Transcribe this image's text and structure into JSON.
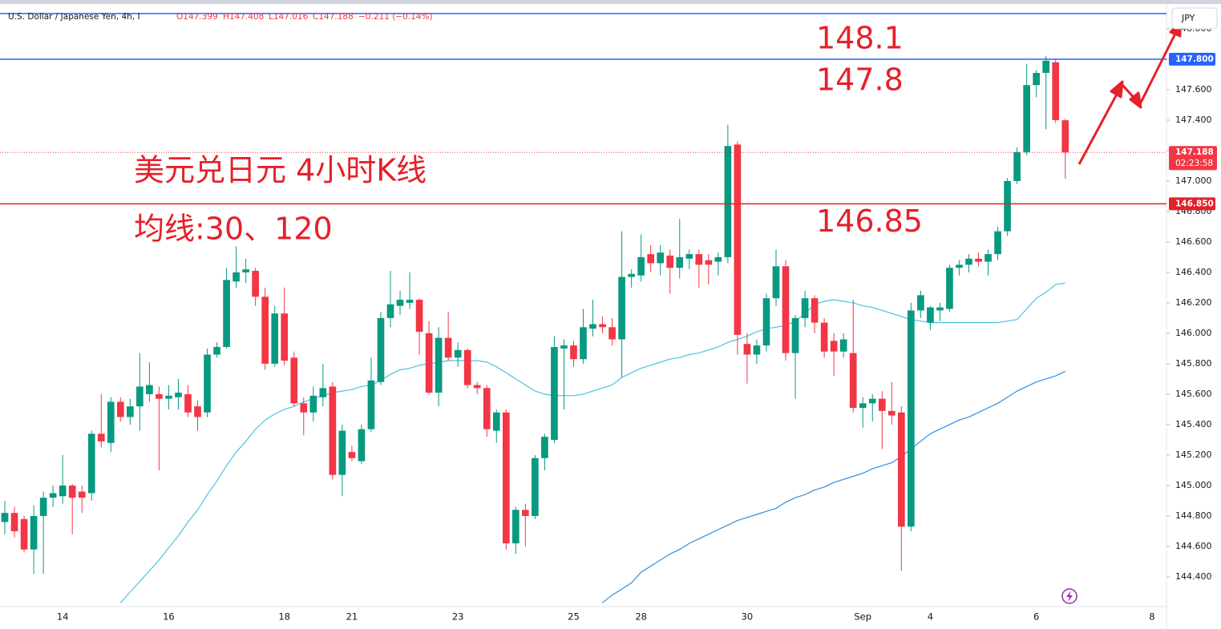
{
  "chart_data": {
    "type": "candlestick",
    "title": "U.S. Dollar / Japanese Yen, 4h, I",
    "header_values": [
      "O147.399",
      "H147.408",
      "L147.016",
      "C147.188",
      "−0.211 (−0.14%)"
    ],
    "currency_button": "JPY",
    "annotations": [
      "美元兑日元 4小时K线",
      "均线:30、120"
    ],
    "categories": [
      null,
      null,
      null,
      null,
      null,
      null,
      "14",
      null,
      null,
      null,
      null,
      null,
      null,
      null,
      null,
      null,
      null,
      "16",
      null,
      null,
      null,
      null,
      null,
      null,
      null,
      null,
      null,
      null,
      null,
      "18",
      null,
      null,
      null,
      null,
      null,
      null,
      "21",
      null,
      null,
      null,
      null,
      null,
      null,
      null,
      null,
      null,
      null,
      "23",
      null,
      null,
      null,
      null,
      null,
      null,
      null,
      null,
      null,
      null,
      null,
      "25",
      null,
      null,
      null,
      null,
      null,
      null,
      "28",
      null,
      null,
      null,
      null,
      null,
      null,
      null,
      null,
      null,
      null,
      "30",
      null,
      null,
      null,
      null,
      null,
      null,
      null,
      null,
      null,
      null,
      null,
      "Sep",
      null,
      null,
      null,
      null,
      null,
      null,
      "4",
      null,
      null,
      null,
      null,
      null,
      null,
      null,
      null,
      null,
      null,
      "6",
      null,
      null,
      null,
      null,
      null,
      null,
      null,
      null,
      null,
      null,
      null,
      "8",
      null
    ],
    "open": [
      144.76,
      144.82,
      144.78,
      144.58,
      144.8,
      144.92,
      144.93,
      145,
      144.96,
      144.95,
      145.34,
      145.28,
      145.55,
      145.45,
      145.52,
      145.6,
      145.6,
      145.57,
      145.58,
      145.6,
      145.52,
      145.48,
      145.86,
      145.91,
      146.34,
      146.4,
      146.41,
      146.24,
      145.8,
      146.13,
      145.84,
      145.54,
      145.48,
      145.58,
      145.65,
      145.07,
      145.22,
      145.16,
      145.37,
      145.68,
      146.1,
      146.18,
      146.2,
      146.22,
      146,
      145.61,
      145.97,
      145.84,
      145.89,
      145.66,
      145.64,
      145.36,
      145.48,
      144.62,
      144.84,
      144.8,
      145.18,
      145.3,
      145.9,
      145.92,
      145.83,
      146.03,
      146.06,
      146.04,
      145.96,
      146.37,
      146.38,
      146.52,
      146.46,
      146.51,
      146.43,
      146.49,
      146.52,
      146.48,
      146.47,
      146.5,
      147.24,
      145.93,
      145.86,
      145.92,
      146.23,
      146.44,
      145.87,
      146.1,
      146.23,
      146.07,
      145.95,
      145.88,
      145.87,
      145.51,
      145.54,
      145.57,
      145.49,
      145.48,
      144.73,
      146.15,
      146.07,
      146.15,
      146.16,
      146.43,
      146.45,
      146.49,
      146.47,
      146.52,
      146.67,
      147,
      147.19,
      147.63,
      147.71,
      147.78,
      147.399,
      null,
      null,
      null,
      null,
      null,
      null,
      null,
      null,
      null,
      null
    ],
    "high": [
      144.9,
      144.86,
      144.8,
      144.87,
      144.96,
      145,
      145.2,
      145.01,
      145,
      145.36,
      145.6,
      145.58,
      145.58,
      145.57,
      145.87,
      145.81,
      145.65,
      145.66,
      145.7,
      145.66,
      145.56,
      145.9,
      145.94,
      146.43,
      146.57,
      146.49,
      146.43,
      146.3,
      146.18,
      146.3,
      145.88,
      145.58,
      145.65,
      145.8,
      145.68,
      145.4,
      145.26,
      145.4,
      145.84,
      146.14,
      146.41,
      146.28,
      146.4,
      146.23,
      146.08,
      146.04,
      146.14,
      145.94,
      145.9,
      145.68,
      145.66,
      145.5,
      145.5,
      144.86,
      144.88,
      145.2,
      145.34,
      145.98,
      145.96,
      145.95,
      146.16,
      146.22,
      146.11,
      146.1,
      146.67,
      146.42,
      146.65,
      146.58,
      146.58,
      146.55,
      146.75,
      146.55,
      146.55,
      146.52,
      146.53,
      147.37,
      147.26,
      146,
      145.96,
      146.26,
      146.55,
      146.48,
      146.12,
      146.28,
      146.25,
      146.1,
      146,
      146,
      146.22,
      145.58,
      145.6,
      145.62,
      145.68,
      145.52,
      146.2,
      146.28,
      146.18,
      146.2,
      146.45,
      146.48,
      146.52,
      146.53,
      146.55,
      146.7,
      147.02,
      147.22,
      147.77,
      147.73,
      147.82,
      147.8,
      147.408,
      null,
      null,
      null,
      null,
      null,
      null,
      null,
      null,
      null,
      null
    ],
    "low": [
      144.68,
      144.66,
      144.56,
      144.42,
      144.42,
      144.86,
      144.88,
      144.68,
      144.82,
      144.9,
      145.25,
      145.22,
      145.42,
      145.4,
      145.36,
      145.55,
      145.1,
      145.5,
      145.5,
      145.45,
      145.36,
      145.45,
      145.84,
      145.9,
      146.3,
      146.33,
      146.18,
      145.76,
      145.78,
      145.79,
      145.52,
      145.33,
      145.42,
      145.52,
      145.04,
      144.93,
      145.16,
      145.14,
      145.35,
      145.66,
      146.04,
      146.12,
      146.16,
      145.86,
      145.6,
      145.52,
      145.82,
      145.78,
      145.64,
      145.6,
      145.32,
      145.28,
      144.58,
      144.55,
      144.6,
      144.78,
      145.1,
      145.28,
      145.5,
      145.78,
      145.8,
      145.98,
      146,
      145.92,
      145.71,
      146.3,
      146.34,
      146.4,
      146.38,
      146.26,
      146.36,
      146.42,
      146.3,
      146.32,
      146.38,
      146.46,
      145.86,
      145.67,
      145.8,
      145.88,
      146.18,
      145.82,
      145.57,
      146.04,
      146,
      145.84,
      145.72,
      145.84,
      145.48,
      145.38,
      145.42,
      145.24,
      145.4,
      144.44,
      144.7,
      146.1,
      146.02,
      146.08,
      146.14,
      146.38,
      146.4,
      146.44,
      146.38,
      146.48,
      146.64,
      146.98,
      147.17,
      147.55,
      147.34,
      147.38,
      147.016,
      null,
      null,
      null,
      null,
      null,
      null,
      null,
      null,
      null,
      null
    ],
    "close": [
      144.82,
      144.7,
      144.58,
      144.8,
      144.92,
      144.95,
      145,
      144.92,
      144.92,
      145.34,
      145.29,
      145.55,
      145.45,
      145.52,
      145.65,
      145.66,
      145.57,
      145.59,
      145.61,
      145.48,
      145.45,
      145.86,
      145.91,
      146.35,
      146.4,
      146.42,
      146.24,
      145.8,
      146.13,
      145.82,
      145.54,
      145.48,
      145.59,
      145.64,
      145.07,
      145.36,
      145.18,
      145.37,
      145.69,
      146.1,
      146.19,
      146.22,
      146.22,
      146.01,
      145.61,
      145.97,
      145.84,
      145.89,
      145.66,
      145.64,
      145.37,
      145.48,
      144.62,
      144.84,
      144.8,
      145.18,
      145.32,
      145.91,
      145.92,
      145.83,
      146.04,
      146.06,
      146.04,
      145.96,
      146.37,
      146.39,
      146.5,
      146.46,
      146.53,
      146.43,
      146.5,
      146.52,
      146.45,
      146.45,
      146.5,
      147.23,
      145.99,
      145.86,
      145.92,
      146.23,
      146.44,
      145.87,
      146.1,
      146.23,
      146.07,
      145.88,
      145.88,
      145.96,
      145.51,
      145.54,
      145.57,
      145.49,
      145.46,
      144.73,
      146.15,
      146.25,
      146.17,
      146.17,
      146.43,
      146.45,
      146.49,
      146.47,
      146.52,
      146.67,
      147,
      147.19,
      147.63,
      147.71,
      147.79,
      147.4,
      147.188,
      null,
      null,
      null,
      null,
      null,
      null,
      null,
      null,
      null,
      null
    ],
    "up_color": "#089981",
    "down_color": "#f23645",
    "series": [
      {
        "color": "#4cc3e0",
        "values": [
          null,
          null,
          null,
          null,
          null,
          null,
          null,
          null,
          null,
          null,
          null,
          null,
          144.23,
          144.3,
          144.37,
          144.44,
          144.51,
          144.59,
          144.67,
          144.76,
          144.84,
          144.94,
          145.03,
          145.13,
          145.22,
          145.29,
          145.37,
          145.43,
          145.47,
          145.5,
          145.52,
          145.55,
          145.57,
          145.59,
          145.61,
          145.62,
          145.63,
          145.65,
          145.66,
          145.69,
          145.73,
          145.76,
          145.77,
          145.79,
          145.8,
          145.81,
          145.82,
          145.82,
          145.82,
          145.82,
          145.81,
          145.78,
          145.74,
          145.7,
          145.66,
          145.62,
          145.6,
          145.59,
          145.59,
          145.59,
          145.6,
          145.62,
          145.64,
          145.66,
          145.71,
          145.74,
          145.77,
          145.79,
          145.81,
          145.83,
          145.84,
          145.86,
          145.87,
          145.89,
          145.91,
          145.94,
          145.96,
          145.98,
          146.01,
          146.03,
          146.04,
          146.05,
          146.08,
          146.13,
          146.19,
          146.21,
          146.22,
          146.21,
          146.2,
          146.18,
          146.17,
          146.15,
          146.13,
          146.11,
          146.09,
          146.08,
          146.07,
          146.07,
          146.07,
          146.07,
          146.07,
          146.07,
          146.07,
          146.07,
          146.08,
          146.09,
          146.16,
          146.23,
          146.27,
          146.32,
          146.33,
          null,
          null,
          null,
          null,
          null,
          null,
          null,
          null,
          null,
          null
        ]
      },
      {
        "color": "#2f8fe0",
        "values": [
          null,
          null,
          null,
          null,
          null,
          null,
          null,
          null,
          null,
          null,
          null,
          null,
          null,
          null,
          null,
          null,
          null,
          null,
          null,
          null,
          null,
          null,
          null,
          null,
          null,
          null,
          null,
          null,
          null,
          null,
          null,
          null,
          null,
          null,
          null,
          null,
          null,
          null,
          null,
          null,
          null,
          null,
          null,
          null,
          null,
          null,
          null,
          null,
          null,
          null,
          null,
          null,
          null,
          null,
          null,
          null,
          null,
          null,
          null,
          null,
          null,
          null,
          144.23,
          144.28,
          144.32,
          144.36,
          144.43,
          144.47,
          144.51,
          144.55,
          144.58,
          144.62,
          144.65,
          144.68,
          144.71,
          144.74,
          144.77,
          144.79,
          144.81,
          144.83,
          144.85,
          144.89,
          144.92,
          144.94,
          144.97,
          144.99,
          145.02,
          145.04,
          145.06,
          145.08,
          145.11,
          145.13,
          145.15,
          145.19,
          145.24,
          145.29,
          145.34,
          145.37,
          145.4,
          145.43,
          145.45,
          145.48,
          145.51,
          145.54,
          145.58,
          145.62,
          145.65,
          145.68,
          145.7,
          145.72,
          145.75,
          null,
          null,
          null,
          null,
          null,
          null,
          null,
          null,
          null,
          null
        ]
      }
    ],
    "levels": [
      {
        "value": 148.1,
        "color": "#2962ff"
      },
      {
        "value": 147.8,
        "color": "#2962ff",
        "axis_label": "147.800"
      },
      {
        "value": 146.85,
        "color": "#e5202a",
        "axis_label": "146.850"
      }
    ],
    "last_price": {
      "value": 147.188,
      "label": "147.188",
      "countdown": "02:23:58",
      "color": "#f23645"
    },
    "ylim": [
      144.205,
      148.189
    ],
    "yticks": [
      {
        "value": 144.4,
        "label": "144.400"
      },
      {
        "value": 144.6,
        "label": "144.600"
      },
      {
        "value": 144.8,
        "label": "144.800"
      },
      {
        "value": 145,
        "label": "145.000"
      },
      {
        "value": 145.2,
        "label": "145.200"
      },
      {
        "value": 145.4,
        "label": "145.400"
      },
      {
        "value": 145.6,
        "label": "145.600"
      },
      {
        "value": 145.8,
        "label": "145.800"
      },
      {
        "value": 146,
        "label": "146.000"
      },
      {
        "value": 146.2,
        "label": "146.200"
      },
      {
        "value": 146.4,
        "label": "146.400"
      },
      {
        "value": 146.6,
        "label": "146.600"
      },
      {
        "value": 146.8,
        "label": "146.800"
      },
      {
        "value": 147,
        "label": "147.000"
      },
      {
        "value": 147.2,
        "label": "147.200"
      },
      {
        "value": 147.4,
        "label": "147.400"
      },
      {
        "value": 147.6,
        "label": "147.600"
      },
      {
        "value": 147.8,
        "label": "147.800"
      },
      {
        "value": 148,
        "label": "148.000"
      }
    ]
  }
}
